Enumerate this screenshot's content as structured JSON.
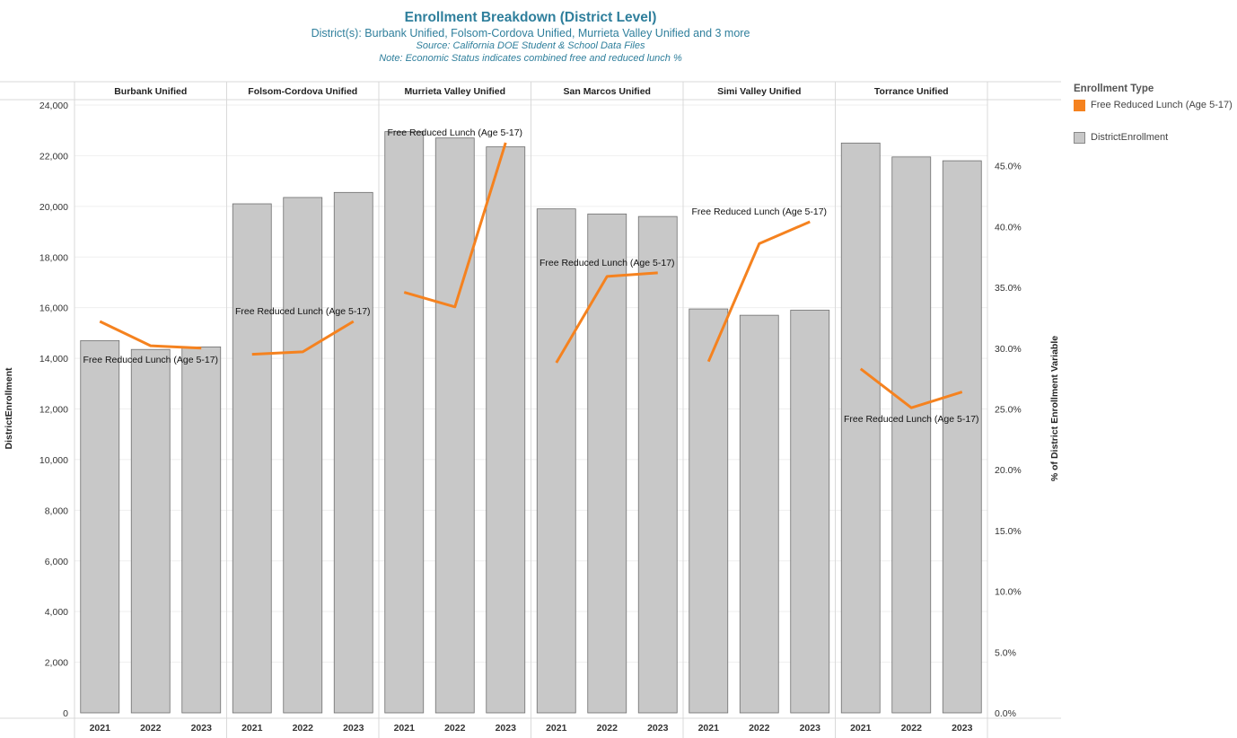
{
  "header": {
    "title": "Enrollment Breakdown (District Level)",
    "subtitle": "District(s): Burbank Unified, Folsom-Cordova Unified, Murrieta Valley Unified and 3 more",
    "source": "Source: California DOE Student & School Data Files",
    "note": "Note: Economic Status indicates combined free and reduced lunch %"
  },
  "legend": {
    "title": "Enrollment Type",
    "items": [
      {
        "label": "Free Reduced Lunch (Age 5-17)",
        "color": "#f5821f"
      },
      {
        "label": "DistrictEnrollment",
        "color": "#c8c8c8"
      }
    ]
  },
  "chart_data": {
    "type": "bar",
    "combo": "bars with line overlay on secondary axis",
    "facets": [
      "Burbank Unified",
      "Folsom-Cordova Unified",
      "Murrieta Valley Unified",
      "San Marcos Unified",
      "Simi Valley Unified",
      "Torrance Unified"
    ],
    "categories": [
      "2021",
      "2022",
      "2023"
    ],
    "ylabel": "DistrictEnrollment",
    "ylabel_right": "% of District Enrollment Variable",
    "ylim": [
      0,
      24000
    ],
    "ylim_right": [
      0,
      0.5
    ],
    "y_ticks": [
      "0",
      "2,000",
      "4,000",
      "6,000",
      "8,000",
      "10,000",
      "12,000",
      "14,000",
      "16,000",
      "18,000",
      "20,000",
      "22,000",
      "24,000"
    ],
    "y_right_ticks": [
      "0.0%",
      "5.0%",
      "10.0%",
      "15.0%",
      "20.0%",
      "25.0%",
      "30.0%",
      "35.0%",
      "40.0%",
      "45.0%"
    ],
    "grid": true,
    "bar_series": {
      "name": "DistrictEnrollment",
      "color": "#c8c8c8",
      "values": [
        [
          14700,
          14350,
          14450
        ],
        [
          20100,
          20350,
          20550
        ],
        [
          22950,
          22700,
          22350
        ],
        [
          19900,
          19700,
          19600
        ],
        [
          15950,
          15700,
          15900
        ],
        [
          22500,
          21950,
          21800
        ]
      ]
    },
    "line_series": {
      "name": "Free Reduced Lunch (Age 5-17)",
      "color": "#f5821f",
      "values": [
        [
          0.322,
          0.302,
          0.3
        ],
        [
          0.295,
          0.297,
          0.322
        ],
        [
          0.346,
          0.334,
          0.469
        ],
        [
          0.288,
          0.359,
          0.362
        ],
        [
          0.289,
          0.386,
          0.404
        ],
        [
          0.283,
          0.251,
          0.264
        ]
      ],
      "labels": [
        "Free Reduced Lunch (Age 5-17)",
        "Free Reduced Lunch (Age 5-17)",
        "Free Reduced Lunch (Age 5-17)",
        "Free Reduced Lunch (Age 5-17)",
        "Free Reduced Lunch (Age 5-17)",
        "Free Reduced Lunch (Age 5-17)"
      ]
    }
  }
}
